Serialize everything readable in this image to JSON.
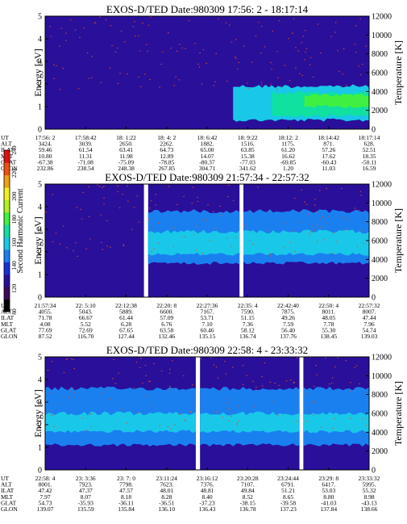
{
  "chart_data": [
    {
      "type": "heatmap",
      "title": "EXOS-D/TED   Date:980309  17:56: 2 - 18:17:14",
      "ylabel": "Energy [eV]",
      "ylabel_right": "Temperature [K]",
      "ylim": [
        0,
        5
      ],
      "ylim_right": [
        0,
        12000
      ],
      "yticks": [
        "0",
        "1",
        "2",
        "3",
        "4",
        "5"
      ],
      "yticks_right": [
        "0",
        "2000",
        "4000",
        "6000",
        "8000",
        "10000",
        "12000"
      ],
      "segments": [
        [
          0,
          1
        ]
      ],
      "bands": [
        {
          "x0": 0.58,
          "x1": 1.0,
          "y0": 0.4,
          "y1": 1.9,
          "level": 3
        },
        {
          "x0": 0.7,
          "x1": 1.0,
          "y0": 0.6,
          "y1": 1.6,
          "level": 4
        },
        {
          "x0": 0.8,
          "x1": 1.0,
          "y0": 1.0,
          "y1": 1.5,
          "level": 5
        }
      ],
      "orbit": {
        "labels": [
          "UT",
          "ALT",
          "ILAT",
          "MLT",
          "GLAT",
          "GLON"
        ],
        "columns": [
          [
            "17:56: 2",
            "3424.",
            "59.46",
            "10.80",
            "-67.38",
            "232.86"
          ],
          [
            "17:58:42",
            "3039.",
            "61.54",
            "11.31",
            "-71.08",
            "238.54"
          ],
          [
            "18: 1:22",
            "2650.",
            "63.41",
            "11.98",
            "-75.09",
            "248.38"
          ],
          [
            "18: 4: 2",
            "2262.",
            "64.73",
            "12.89",
            "-78.85",
            "267.85"
          ],
          [
            "18: 6:42",
            "1882.",
            "65.00",
            "14.07",
            "-80.37",
            "304.71"
          ],
          [
            "18: 9:22",
            "1516.",
            "63.85",
            "15.38",
            "-77.03",
            "341.62"
          ],
          [
            "18:12: 2",
            "1175.",
            "61.20",
            "16.62",
            "-69.85",
            "1.20"
          ],
          [
            "18:14:42",
            "871.",
            "57.26",
            "17.62",
            "-60.43",
            "11.03"
          ],
          [
            "18:17:14",
            "628.",
            "52.51",
            "18.35",
            "-50.11",
            "16.59"
          ]
        ]
      }
    },
    {
      "type": "heatmap",
      "title": "EXOS-D/TED   Date:980309  21:57:34 - 22:57:32",
      "ylabel": "Energy [eV]",
      "ylabel_right": "Temperature [K]",
      "ylim": [
        0,
        5
      ],
      "ylim_right": [
        0,
        12000
      ],
      "yticks": [
        "0",
        "1",
        "2",
        "3",
        "4",
        "5"
      ],
      "yticks_right": [
        "0",
        "2000",
        "4000",
        "6000",
        "8000",
        "10000",
        "12000"
      ],
      "segments": [
        [
          0,
          0.305
        ],
        [
          0.318,
          0.6
        ],
        [
          0.612,
          1
        ]
      ],
      "bands": [
        {
          "x0": 0.318,
          "x1": 1.0,
          "y0": 1.5,
          "y1": 3.8,
          "level": 2
        },
        {
          "x0": 0.318,
          "x1": 1.0,
          "y0": 1.9,
          "y1": 2.9,
          "level": 3
        }
      ],
      "orbit": {
        "labels": [
          "UT",
          "ALT",
          "ILAT",
          "MLT",
          "GLAT",
          "GLON"
        ],
        "columns": [
          [
            "21:57:34",
            "4055.",
            "71.78",
            "4.08",
            "77.69",
            "87.52"
          ],
          [
            "22: 5:10",
            "5043.",
            "66.67",
            "5.52",
            "72.69",
            "116.70"
          ],
          [
            "22:12:38",
            "5889.",
            "61.44",
            "6.28",
            "67.65",
            "127.44"
          ],
          [
            "22:20: 8",
            "6600.",
            "57.09",
            "6.76",
            "63.58",
            "132.46"
          ],
          [
            "22:27:36",
            "7167.",
            "53.71",
            "7.10",
            "60.46",
            "135.15"
          ],
          [
            "22:35: 4",
            "7590.",
            "51.15",
            "7.36",
            "58.12",
            "136.74"
          ],
          [
            "22:42:40",
            "7875.",
            "49.26",
            "7.59",
            "56.40",
            "137.76"
          ],
          [
            "22:50: 4",
            "8011.",
            "48.05",
            "7.78",
            "55.30",
            "138.45"
          ],
          [
            "22:57:32",
            "8007.",
            "47.44",
            "7.96",
            "54.74",
            "139.03"
          ]
        ]
      }
    },
    {
      "type": "heatmap",
      "title": "EXOS-D/TED   Date:980309  22:58: 4 - 23:33:32",
      "ylabel": "Energy [eV]",
      "ylabel_right": "Temperature [K]",
      "ylim": [
        0,
        5
      ],
      "ylim_right": [
        0,
        12000
      ],
      "yticks": [
        "0",
        "1",
        "2",
        "3",
        "4",
        "5"
      ],
      "yticks_right": [
        "0",
        "2000",
        "4000",
        "6000",
        "8000",
        "10000",
        "12000"
      ],
      "segments": [
        [
          0,
          0.465
        ],
        [
          0.478,
          0.785
        ],
        [
          0.797,
          1
        ]
      ],
      "bands": [
        {
          "x0": 0.0,
          "x1": 1.0,
          "y0": 1.1,
          "y1": 3.6,
          "level": 2
        },
        {
          "x0": 0.0,
          "x1": 1.0,
          "y0": 1.7,
          "y1": 2.5,
          "level": 3
        }
      ],
      "orbit": {
        "labels": [
          "UT",
          "ALT",
          "ILAT",
          "MLT",
          "GLAT",
          "GLON"
        ],
        "columns": [
          [
            "22:58: 4",
            "8001.",
            "47.42",
            "7.97",
            "54.73",
            "139.07"
          ],
          [
            "23: 3:36",
            "7923.",
            "47.37",
            "8.07",
            "-35.93",
            "135.59"
          ],
          [
            "23: 7: 0",
            "7798.",
            "47.57",
            "8.18",
            "-36.11",
            "135.84"
          ],
          [
            "23:11:24",
            "7623.",
            "48.01",
            "8.28",
            "-36.51",
            "136.10"
          ],
          [
            "23:16:12",
            "7376.",
            "48.81",
            "8.40",
            "-37.23",
            "136.43"
          ],
          [
            "23:20:28",
            "7107.",
            "49.84",
            "8.52",
            "-38.15",
            "136.78"
          ],
          [
            "23:24:44",
            "6791.",
            "51.21",
            "8.65",
            "-39.58",
            "137.23"
          ],
          [
            "23:29: 8",
            "6417.",
            "53.03",
            "8.80",
            "-41.03",
            "137.84"
          ],
          [
            "23:33:32",
            "5995.",
            "55.32",
            "8.98",
            "-43.13",
            "138.66"
          ]
        ]
      }
    }
  ],
  "colorbar": {
    "label": "Second Harmonic Current",
    "ticks": [
      "80",
      "120",
      "140",
      "160",
      "180",
      "200",
      "220",
      "240"
    ],
    "colors": [
      "#000000",
      "#3a0a5a",
      "#2a0f9a",
      "#1a2fd8",
      "#1a80f0",
      "#19c8e8",
      "#10e0a0",
      "#40f040",
      "#b0f020",
      "#f0f020",
      "#f0a010",
      "#f05010",
      "#e01010"
    ]
  },
  "palette": {
    "background": "#2a0f9a",
    "levels": [
      "#2a0f9a",
      "#1a2fd8",
      "#1a80f0",
      "#19c8e8",
      "#10e0a0",
      "#40f040"
    ],
    "noise": "#e05020"
  }
}
